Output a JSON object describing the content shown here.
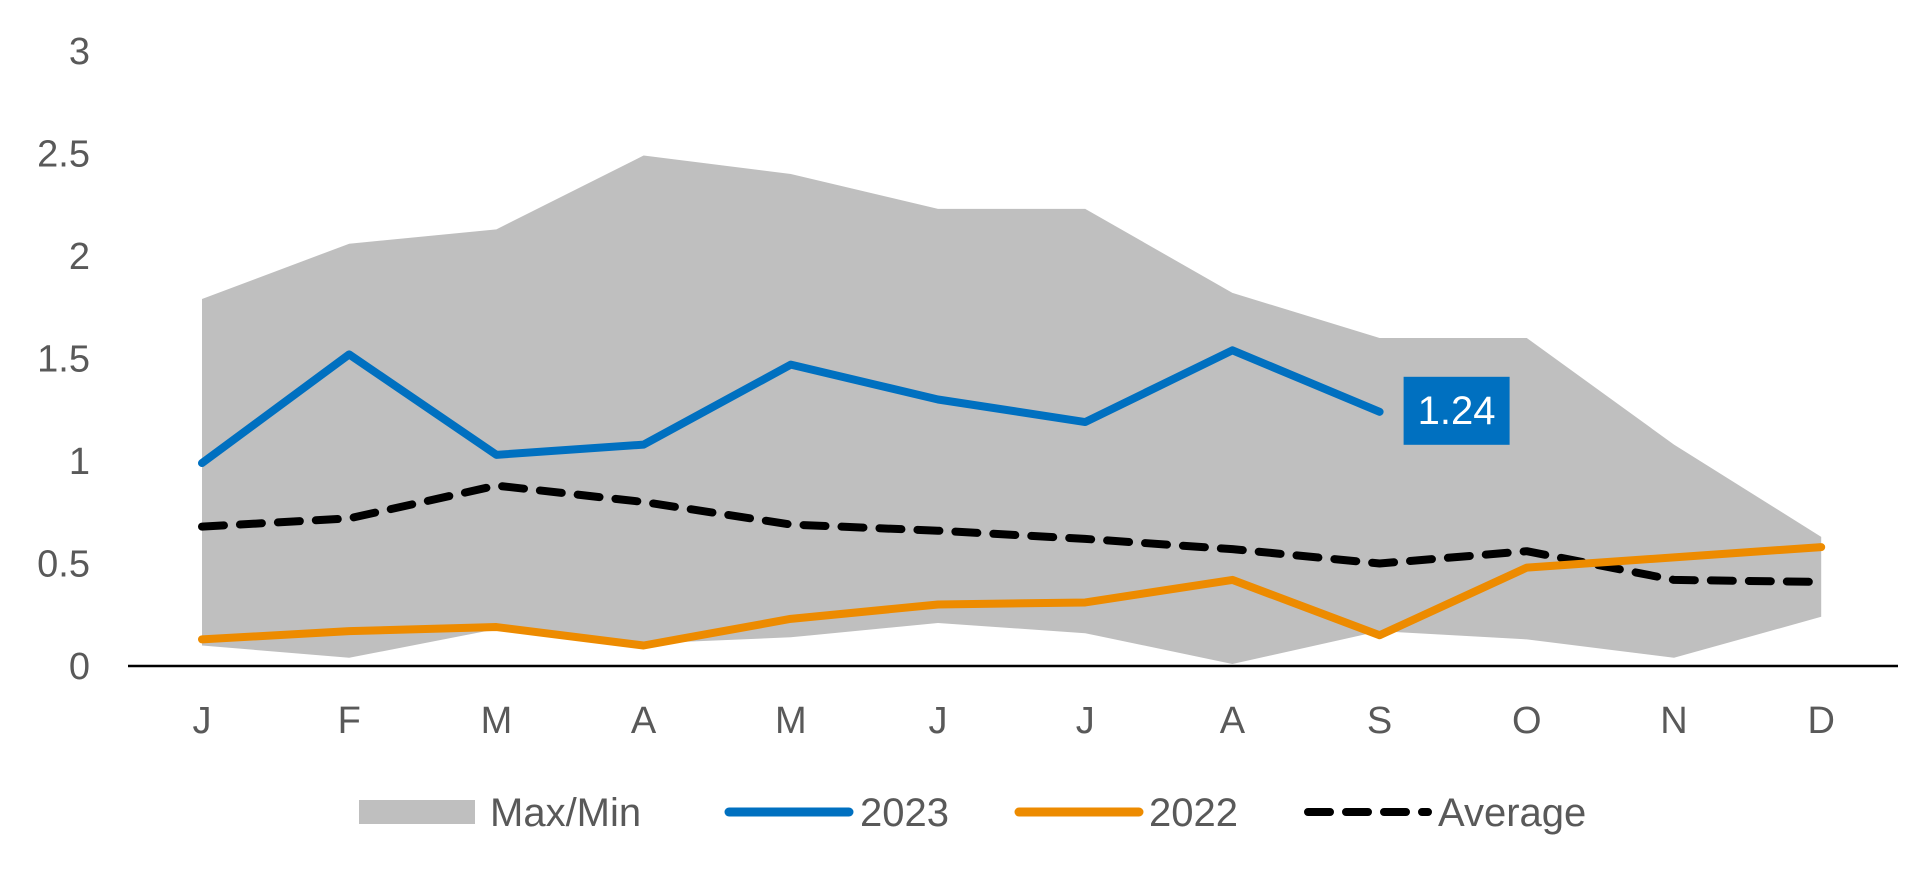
{
  "chart_data": {
    "type": "line",
    "categories": [
      "J",
      "F",
      "M",
      "A",
      "M",
      "J",
      "J",
      "A",
      "S",
      "O",
      "N",
      "D"
    ],
    "yticks": [
      "0",
      "0.5",
      "1",
      "1.5",
      "2",
      "2.5",
      "3"
    ],
    "ylim": [
      0,
      3
    ],
    "grid": false,
    "legend_position": "bottom",
    "band": {
      "name": "Max/Min",
      "color": "#bfbfbf",
      "max": [
        1.79,
        2.06,
        2.13,
        2.49,
        2.4,
        2.23,
        2.23,
        1.82,
        1.6,
        1.6,
        1.08,
        0.63
      ],
      "min": [
        0.1,
        0.04,
        0.18,
        0.11,
        0.14,
        0.21,
        0.16,
        0.01,
        0.17,
        0.13,
        0.04,
        0.24
      ]
    },
    "series": [
      {
        "name": "2023",
        "color": "#0070c0",
        "style": "solid",
        "values": [
          0.99,
          1.52,
          1.03,
          1.08,
          1.47,
          1.3,
          1.19,
          1.54,
          1.24,
          null,
          null,
          null
        ]
      },
      {
        "name": "2022",
        "color": "#ed8b00",
        "style": "solid",
        "values": [
          0.13,
          0.17,
          0.19,
          0.1,
          0.23,
          0.3,
          0.31,
          0.42,
          0.15,
          0.48,
          0.53,
          0.58
        ]
      },
      {
        "name": "Average",
        "color": "#000000",
        "style": "dashed",
        "values": [
          0.68,
          0.72,
          0.88,
          0.8,
          0.69,
          0.66,
          0.62,
          0.57,
          0.5,
          0.56,
          0.42,
          0.41
        ]
      }
    ],
    "annotations": [
      {
        "text": "1.24",
        "series": "2023",
        "category_index": 8,
        "value": 1.24,
        "background": "#0070c0"
      }
    ]
  }
}
